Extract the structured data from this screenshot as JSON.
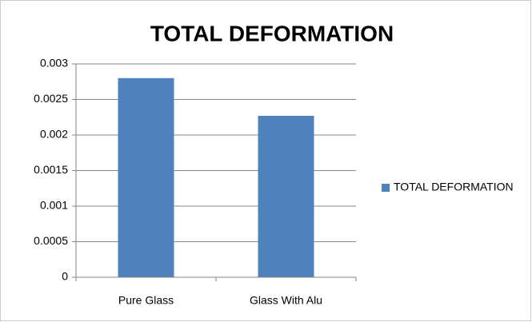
{
  "chart_data": {
    "type": "bar",
    "title": "TOTAL DEFORMATION",
    "categories": [
      "Pure Glass",
      "Glass With Alu"
    ],
    "series": [
      {
        "name": "TOTAL DEFORMATION",
        "color": "#4f81bd",
        "values": [
          0.0028,
          0.00227
        ]
      }
    ],
    "ylim": [
      0,
      0.003
    ],
    "yticks": [
      0,
      0.0005,
      0.001,
      0.0015,
      0.002,
      0.0025,
      0.003
    ],
    "grid": true,
    "legend": "right"
  }
}
